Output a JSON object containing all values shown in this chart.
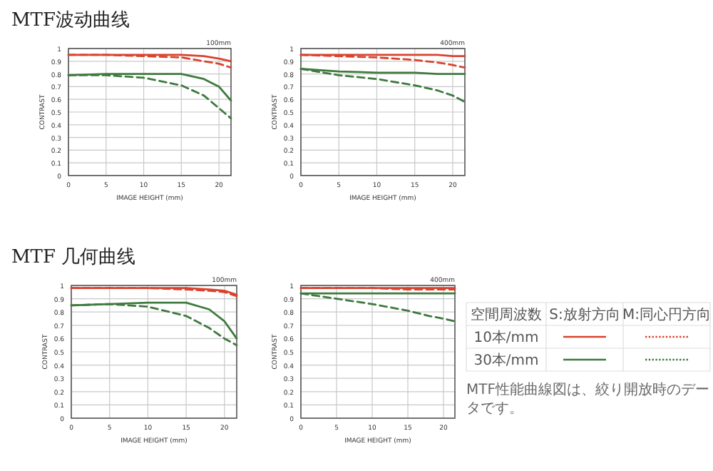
{
  "chart_data": [
    {
      "type": "line",
      "title": "MTF波动曲线",
      "subtitle": "100mm",
      "xlabel": "IMAGE HEIGHT (mm)",
      "ylabel": "CONTRAST",
      "xlim": [
        0,
        21.6
      ],
      "xticks": [
        0,
        5,
        10,
        15,
        20
      ],
      "ylim": [
        0,
        1
      ],
      "yticks": [
        0,
        0.1,
        0.2,
        0.3,
        0.4,
        0.5,
        0.6,
        0.7,
        0.8,
        0.9,
        1
      ],
      "grid": true,
      "x": [
        0,
        5,
        10,
        15,
        18,
        20,
        21.6
      ],
      "series": [
        {
          "color": "#d9432f",
          "line_style": "solid",
          "values": [
            0.95,
            0.95,
            0.95,
            0.95,
            0.94,
            0.92,
            0.9
          ]
        },
        {
          "color": "#d9432f",
          "line_style": "dashed",
          "values": [
            0.95,
            0.95,
            0.94,
            0.93,
            0.9,
            0.88,
            0.85
          ]
        },
        {
          "color": "#3f7a3f",
          "line_style": "solid",
          "values": [
            0.79,
            0.8,
            0.8,
            0.8,
            0.76,
            0.7,
            0.59
          ]
        },
        {
          "color": "#3f7a3f",
          "line_style": "dashed",
          "values": [
            0.79,
            0.79,
            0.77,
            0.71,
            0.63,
            0.53,
            0.45
          ]
        }
      ]
    },
    {
      "type": "line",
      "subtitle": "400mm",
      "xlabel": "IMAGE HEIGHT (mm)",
      "ylabel": "CONTRAST",
      "xlim": [
        0,
        21.6
      ],
      "xticks": [
        0,
        5,
        10,
        15,
        20
      ],
      "ylim": [
        0,
        1
      ],
      "yticks": [
        0,
        0.1,
        0.2,
        0.3,
        0.4,
        0.5,
        0.6,
        0.7,
        0.8,
        0.9,
        1
      ],
      "grid": true,
      "x": [
        0,
        5,
        10,
        15,
        18,
        20,
        21.6
      ],
      "series": [
        {
          "color": "#d9432f",
          "line_style": "solid",
          "values": [
            0.95,
            0.95,
            0.95,
            0.95,
            0.95,
            0.94,
            0.94
          ]
        },
        {
          "color": "#d9432f",
          "line_style": "dashed",
          "values": [
            0.95,
            0.94,
            0.93,
            0.91,
            0.89,
            0.87,
            0.85
          ]
        },
        {
          "color": "#3f7a3f",
          "line_style": "solid",
          "values": [
            0.84,
            0.82,
            0.81,
            0.81,
            0.8,
            0.8,
            0.8
          ]
        },
        {
          "color": "#3f7a3f",
          "line_style": "dashed",
          "values": [
            0.84,
            0.79,
            0.76,
            0.71,
            0.67,
            0.63,
            0.58
          ]
        }
      ]
    },
    {
      "type": "line",
      "title": "MTF 几何曲线",
      "subtitle": "100mm",
      "xlabel": "IMAGE HEIGHT (mm)",
      "ylabel": "CONTRAST",
      "xlim": [
        0,
        21.6
      ],
      "xticks": [
        0,
        5,
        10,
        15,
        20
      ],
      "ylim": [
        0,
        1
      ],
      "yticks": [
        0,
        0.1,
        0.2,
        0.3,
        0.4,
        0.5,
        0.6,
        0.7,
        0.8,
        0.9,
        1
      ],
      "grid": true,
      "x": [
        0,
        5,
        10,
        15,
        18,
        20,
        21.6
      ],
      "series": [
        {
          "color": "#d9432f",
          "line_style": "solid",
          "values": [
            0.98,
            0.98,
            0.98,
            0.98,
            0.97,
            0.96,
            0.93
          ]
        },
        {
          "color": "#d9432f",
          "line_style": "dashed",
          "values": [
            0.98,
            0.98,
            0.98,
            0.97,
            0.96,
            0.95,
            0.92
          ]
        },
        {
          "color": "#3f7a3f",
          "line_style": "solid",
          "values": [
            0.85,
            0.86,
            0.87,
            0.87,
            0.82,
            0.73,
            0.6
          ]
        },
        {
          "color": "#3f7a3f",
          "line_style": "dashed",
          "values": [
            0.85,
            0.86,
            0.84,
            0.77,
            0.68,
            0.6,
            0.55
          ]
        }
      ]
    },
    {
      "type": "line",
      "subtitle": "400mm",
      "xlabel": "IMAGE HEIGHT (mm)",
      "ylabel": "CONTRAST",
      "xlim": [
        0,
        21.6
      ],
      "xticks": [
        0,
        5,
        10,
        15,
        20
      ],
      "ylim": [
        0,
        1
      ],
      "yticks": [
        0,
        0.1,
        0.2,
        0.3,
        0.4,
        0.5,
        0.6,
        0.7,
        0.8,
        0.9,
        1
      ],
      "grid": true,
      "x": [
        0,
        5,
        10,
        15,
        18,
        20,
        21.6
      ],
      "annotations": [
        "空間周波数",
        "S:放射方向",
        "M:同心円方向",
        "10本/mm",
        "30本/mm",
        "MTF性能曲線図は、絞り開放時のデータです。"
      ],
      "series": [
        {
          "color": "#d9432f",
          "line_style": "solid",
          "values": [
            0.98,
            0.98,
            0.98,
            0.98,
            0.98,
            0.98,
            0.98
          ]
        },
        {
          "color": "#d9432f",
          "line_style": "dashed",
          "values": [
            0.98,
            0.98,
            0.98,
            0.97,
            0.97,
            0.97,
            0.97
          ]
        },
        {
          "color": "#3f7a3f",
          "line_style": "solid",
          "values": [
            0.94,
            0.94,
            0.94,
            0.94,
            0.94,
            0.94,
            0.94
          ]
        },
        {
          "color": "#3f7a3f",
          "line_style": "dashed",
          "values": [
            0.94,
            0.9,
            0.86,
            0.81,
            0.77,
            0.75,
            0.73
          ]
        }
      ]
    }
  ]
}
